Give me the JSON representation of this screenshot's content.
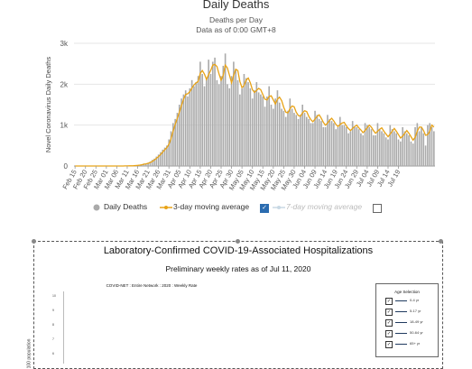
{
  "chart_data": {
    "type": "bar",
    "title": "Daily Deaths",
    "subtitle": [
      "Deaths per Day",
      "Data as of 0:00 GMT+8"
    ],
    "ylabel": "Novel Coronavirus Daily Deaths",
    "ylim": [
      0,
      3000
    ],
    "yticks": [
      "0",
      "1k",
      "2k",
      "3k"
    ],
    "xtick_labels": [
      "Feb 15",
      "Feb 20",
      "Feb 25",
      "Mar 01",
      "Mar 06",
      "Mar 11",
      "Mar 16",
      "Mar 21",
      "Mar 26",
      "Mar 31",
      "Apr 05",
      "Apr 10",
      "Apr 15",
      "Apr 20",
      "Apr 25",
      "Apr 30",
      "May 05",
      "May 10",
      "May 15",
      "May 20",
      "May 25",
      "May 30",
      "Jun 04",
      "Jun 09",
      "Jun 14",
      "Jun 19",
      "Jun 24",
      "Jun 29",
      "Jul 04",
      "Jul 09",
      "Jul 14",
      "Jul 19"
    ],
    "start_date": "Feb 15",
    "series": [
      {
        "name": "Daily Deaths",
        "kind": "bar",
        "color": "#aaaaaa",
        "values": [
          0,
          0,
          0,
          0,
          0,
          0,
          0,
          0,
          0,
          0,
          0,
          0,
          0,
          0,
          0,
          0,
          0,
          0,
          0,
          0,
          1,
          1,
          1,
          1,
          2,
          3,
          5,
          7,
          10,
          15,
          20,
          30,
          40,
          60,
          60,
          80,
          110,
          150,
          180,
          230,
          280,
          340,
          400,
          450,
          500,
          650,
          850,
          1050,
          1150,
          1300,
          1500,
          1650,
          1750,
          1850,
          1700,
          1900,
          2100,
          1950,
          2050,
          2200,
          2550,
          2250,
          1950,
          2150,
          2600,
          2250,
          2550,
          2650,
          2100,
          2000,
          2200,
          2450,
          2750,
          2000,
          1900,
          2200,
          2550,
          2350,
          2100,
          1750,
          1900,
          2250,
          2150,
          2050,
          1900,
          1650,
          1850,
          2050,
          1800,
          1750,
          1700,
          1450,
          1700,
          1950,
          1500,
          1400,
          1650,
          1850,
          1550,
          1400,
          1350,
          1200,
          1350,
          1650,
          1400,
          1300,
          1250,
          1150,
          1250,
          1500,
          1300,
          1200,
          1150,
          1050,
          1050,
          1350,
          1250,
          1150,
          1100,
          950,
          950,
          1250,
          1150,
          1100,
          1050,
          900,
          950,
          1200,
          1000,
          1000,
          950,
          800,
          850,
          1100,
          950,
          950,
          900,
          800,
          750,
          1050,
          1000,
          950,
          900,
          750,
          750,
          1050,
          900,
          850,
          800,
          700,
          650,
          1000,
          900,
          850,
          800,
          650,
          600,
          950,
          850,
          800,
          750,
          600,
          550,
          950,
          1050,
          850,
          950,
          800,
          500,
          1000,
          1050,
          950,
          850
        ]
      },
      {
        "name": "3-day moving average",
        "kind": "line",
        "color": "#e8a317",
        "visible": true
      },
      {
        "name": "7-day moving average",
        "kind": "line",
        "color": "#90b8d8",
        "visible": false
      }
    ]
  },
  "legend": {
    "daily": "Daily Deaths",
    "ma3": "3-day moving average",
    "ma7": "7-day moving average",
    "ma3_checked": true,
    "ma7_checked": false
  },
  "panel": {
    "title": "Laboratory-Confirmed COVID-19-Associated Hospitalizations",
    "subtitle": "Preliminary weekly rates as of Jul 11, 2020",
    "network": "COVID-NET : Entire Network : 2020 : Weekly Rate",
    "yticks": [
      "10",
      "9",
      "8",
      "7",
      "6"
    ],
    "ylabel": "100 population",
    "age_title": "Age Selection",
    "ages": [
      "0-4 yr",
      "5-17 yr",
      "18-49 yr",
      "50-64 yr",
      "65+ yr"
    ],
    "check_glyph": "✓"
  }
}
